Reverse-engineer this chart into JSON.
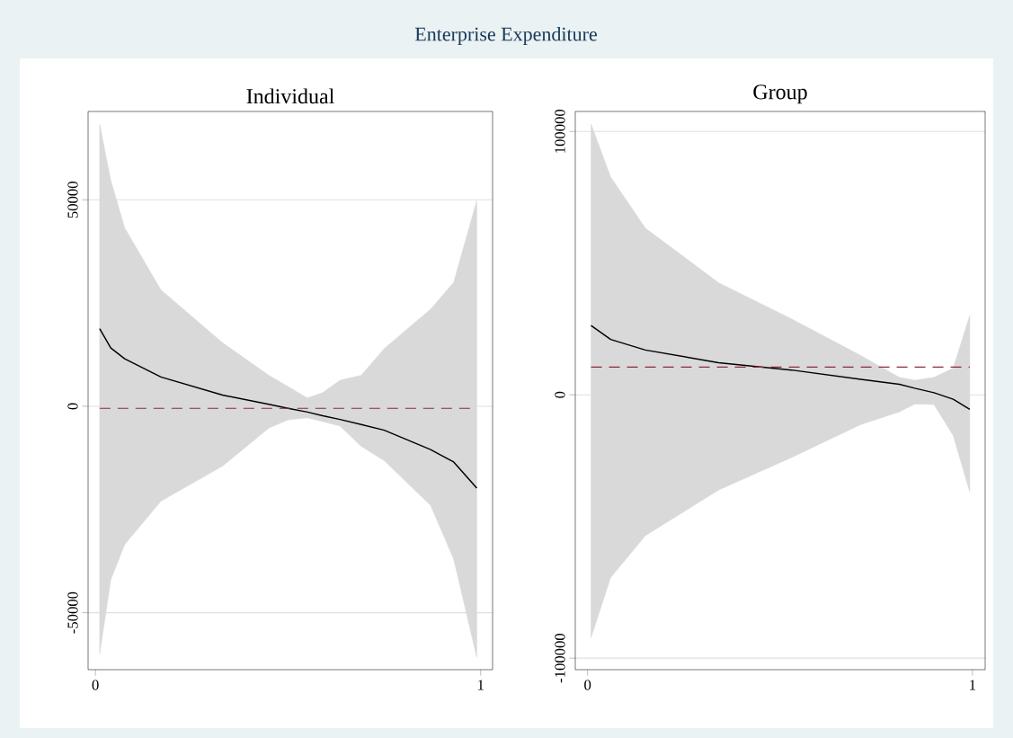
{
  "chart_data": [
    {
      "type": "line",
      "title": "Individual",
      "annotations": [
        "Enterprise Expenditure"
      ],
      "x": [
        0.011,
        0.04,
        0.076,
        0.17,
        0.33,
        0.45,
        0.5,
        0.55,
        0.59,
        0.635,
        0.69,
        0.75,
        0.87,
        0.93,
        0.99
      ],
      "series": [
        {
          "color": "#000000",
          "values": [
            18800,
            14100,
            11500,
            7100,
            2700,
            500,
            -500,
            -1400,
            -2300,
            -3200,
            -4400,
            -5800,
            -10500,
            -13500,
            -19800
          ],
          "lower": [
            -60000,
            -42000,
            -33500,
            -23000,
            -14500,
            -5300,
            -3300,
            -2800,
            -3700,
            -4800,
            -9700,
            -13200,
            -24000,
            -37000,
            -60800
          ],
          "upper": [
            68300,
            54700,
            43200,
            28200,
            15400,
            7500,
            4800,
            2000,
            3300,
            6300,
            7500,
            14000,
            23500,
            30000,
            49800
          ]
        }
      ],
      "ref_lines": [
        {
          "axis": "y",
          "value": -500,
          "color": "#8b2c3a",
          "line_style": "dashed"
        }
      ],
      "xlim": [
        -0.019,
        1.031
      ],
      "ylim": [
        -63800,
        71400
      ],
      "xticks": [
        0,
        1
      ],
      "yticks": [
        -50000,
        0,
        50000
      ],
      "grid": "y"
    },
    {
      "type": "line",
      "title": "Group",
      "x": [
        0.009,
        0.06,
        0.15,
        0.34,
        0.53,
        0.71,
        0.81,
        0.85,
        0.9,
        0.95,
        0.993
      ],
      "series": [
        {
          "color": "#000000",
          "values": [
            26300,
            21000,
            17000,
            12200,
            9400,
            5900,
            4000,
            2500,
            800,
            -1700,
            -5500
          ],
          "lower": [
            -92200,
            -69400,
            -53500,
            -36200,
            -23800,
            -11300,
            -6500,
            -3500,
            -3700,
            -15500,
            -36900
          ],
          "upper": [
            102800,
            82700,
            63300,
            42600,
            28800,
            14900,
            6600,
            5500,
            6600,
            10100,
            30100
          ]
        }
      ],
      "ref_lines": [
        {
          "axis": "y",
          "value": 10500,
          "color": "#8b2c3a",
          "line_style": "dashed"
        }
      ],
      "xlim": [
        -0.032,
        1.033
      ],
      "ylim": [
        -104400,
        107600
      ],
      "xticks": [
        0,
        1
      ],
      "yticks": [
        -100000,
        0,
        100000
      ],
      "grid": "y"
    }
  ]
}
